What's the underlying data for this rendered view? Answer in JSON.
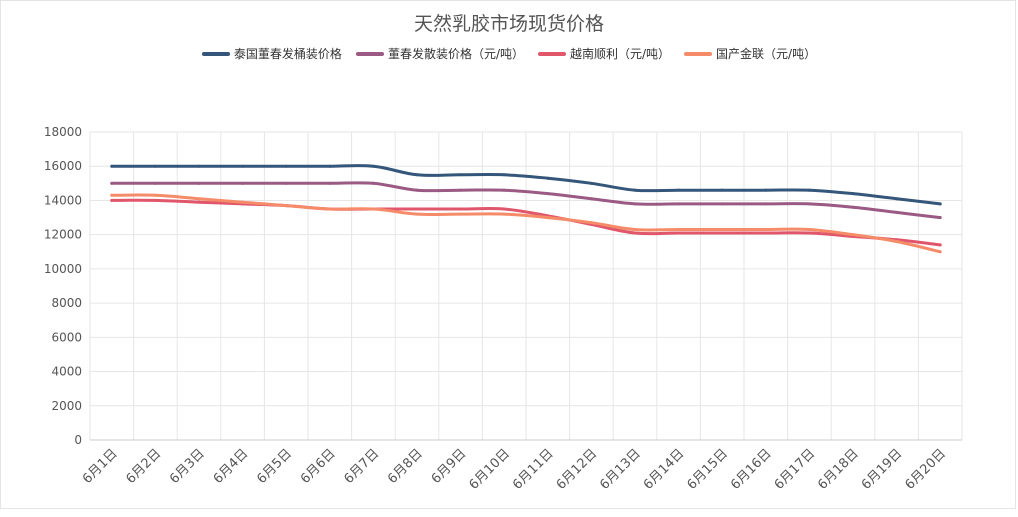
{
  "chart_data": {
    "type": "line",
    "title": "天然乳胶市场现货价格",
    "categories": [
      "6月1日",
      "6月2日",
      "6月3日",
      "6月4日",
      "6月5日",
      "6月6日",
      "6月7日",
      "6月8日",
      "6月9日",
      "6月10日",
      "6月11日",
      "6月12日",
      "6月13日",
      "6月14日",
      "6月15日",
      "6月16日",
      "6月17日",
      "6月18日",
      "6月19日",
      "6月20日"
    ],
    "ylim": [
      0,
      18000
    ],
    "yticks": [
      "0",
      "2000",
      "4000",
      "6000",
      "8000",
      "10000",
      "12000",
      "14000",
      "16000",
      "18000"
    ],
    "grid": true,
    "legend_position": "top-center",
    "series": [
      {
        "name": "泰国董春发桶装价格",
        "color": "#34567a",
        "values": [
          16000,
          16000,
          16000,
          16000,
          16000,
          16000,
          16000,
          15500,
          15500,
          15500,
          15300,
          15000,
          14600,
          14600,
          14600,
          14600,
          14600,
          14400,
          14100,
          13800
        ]
      },
      {
        "name": "董春发散装价格（元/吨）",
        "color": "#9a5a84",
        "values": [
          15000,
          15000,
          15000,
          15000,
          15000,
          15000,
          15000,
          14600,
          14600,
          14600,
          14400,
          14100,
          13800,
          13800,
          13800,
          13800,
          13800,
          13600,
          13300,
          13000
        ]
      },
      {
        "name": "越南顺利（元/吨）",
        "color": "#e0566b",
        "values": [
          14000,
          14000,
          13900,
          13800,
          13700,
          13500,
          13500,
          13500,
          13500,
          13500,
          13100,
          12600,
          12100,
          12100,
          12100,
          12100,
          12100,
          11900,
          11700,
          11400
        ]
      },
      {
        "name": "国产金联（元/吨）",
        "color": "#f58b69",
        "values": [
          14300,
          14300,
          14100,
          13900,
          13700,
          13500,
          13500,
          13200,
          13200,
          13200,
          13000,
          12700,
          12300,
          12300,
          12300,
          12300,
          12300,
          12000,
          11600,
          11000
        ]
      }
    ]
  }
}
